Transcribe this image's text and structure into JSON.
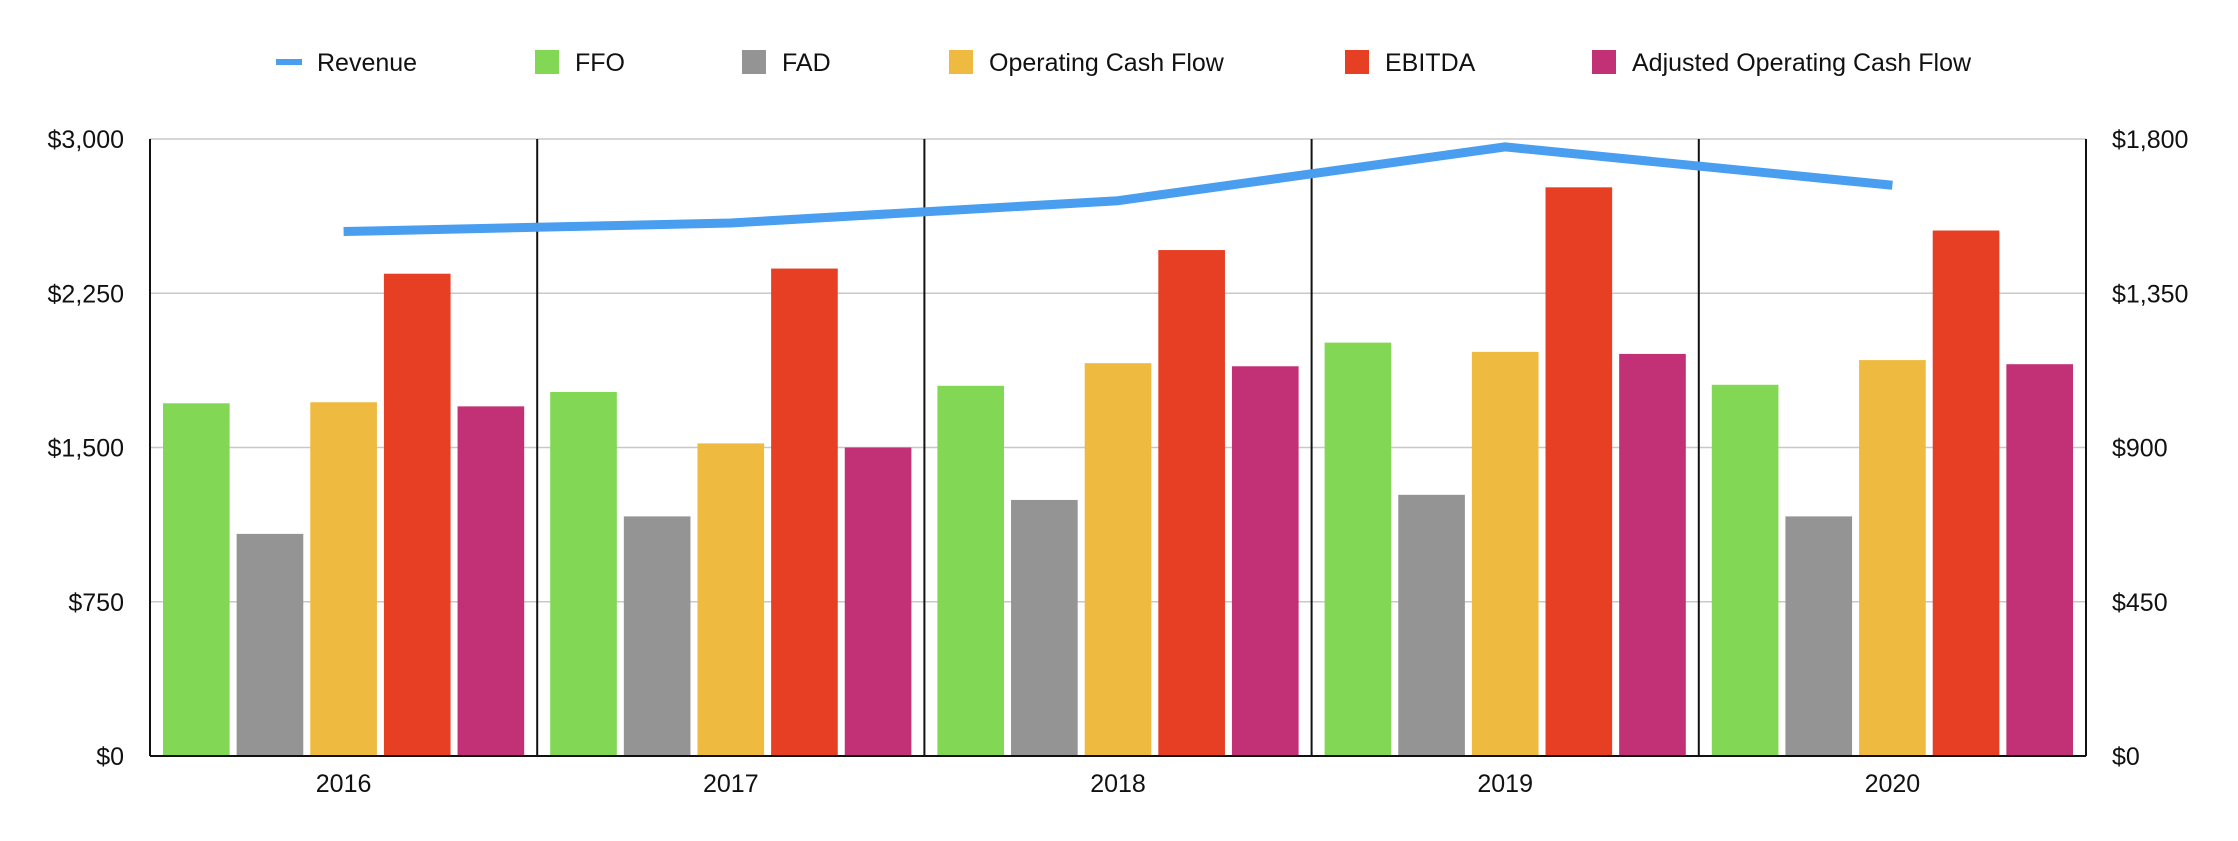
{
  "chart_data": {
    "type": "bar",
    "categories": [
      "2016",
      "2017",
      "2018",
      "2019",
      "2020"
    ],
    "series": [
      {
        "name": "FFO",
        "kind": "bar",
        "axis": "left",
        "color": "#82d855",
        "values": [
          1715,
          1770,
          1800,
          2010,
          1805
        ]
      },
      {
        "name": "FAD",
        "kind": "bar",
        "axis": "left",
        "color": "#949494",
        "values": [
          1080,
          1165,
          1245,
          1270,
          1165
        ]
      },
      {
        "name": "Operating Cash Flow",
        "kind": "bar",
        "axis": "left",
        "color": "#eeba3f",
        "values": [
          1720,
          1520,
          1910,
          1965,
          1925
        ]
      },
      {
        "name": "EBITDA",
        "kind": "bar",
        "axis": "left",
        "color": "#e63f24",
        "values": [
          2345,
          2370,
          2460,
          2765,
          2555
        ]
      },
      {
        "name": "Adjusted Operating Cash Flow",
        "kind": "bar",
        "axis": "left",
        "color": "#c23075",
        "values": [
          1700,
          1500,
          1895,
          1955,
          1905
        ]
      },
      {
        "name": "Revenue",
        "kind": "line",
        "axis": "right",
        "color": "#4a9ef0",
        "values": [
          1530,
          1555,
          1620,
          1777,
          1665
        ]
      }
    ],
    "legend_order": [
      "Revenue",
      "FFO",
      "FAD",
      "Operating Cash Flow",
      "EBITDA",
      "Adjusted Operating Cash Flow"
    ],
    "legend_position": "top",
    "y_left": {
      "min": 0,
      "max": 3000,
      "ticks": [
        0,
        750,
        1500,
        2250,
        3000
      ],
      "tick_labels": [
        "$0",
        "$750",
        "$1,500",
        "$2,250",
        "$3,000"
      ]
    },
    "y_right": {
      "min": 0,
      "max": 1800,
      "ticks": [
        0,
        450,
        900,
        1350,
        1800
      ],
      "tick_labels": [
        "$0",
        "$450",
        "$900",
        "$1,350",
        "$1,800"
      ]
    },
    "grid": true
  }
}
